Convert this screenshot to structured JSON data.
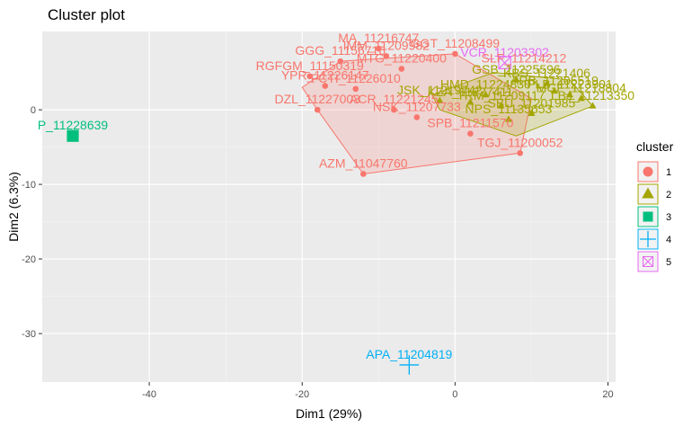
{
  "chart_data": {
    "type": "scatter",
    "title": "Cluster plot",
    "xlabel": "Dim1 (29%)",
    "ylabel": "Dim2 (6.3%)",
    "xlim": [
      -54,
      21
    ],
    "ylim": [
      -36.5,
      10.5
    ],
    "x_ticks": [
      -40,
      -20,
      0,
      20
    ],
    "y_ticks": [
      0,
      -10,
      -20,
      -30
    ],
    "grid": true,
    "legend": {
      "title": "cluster",
      "position": "right",
      "items": [
        {
          "label": "1",
          "color": "#F8766D",
          "shape": "circle"
        },
        {
          "label": "2",
          "color": "#A3A500",
          "shape": "triangle"
        },
        {
          "label": "3",
          "color": "#00BF7D",
          "shape": "square"
        },
        {
          "label": "4",
          "color": "#00B0F6",
          "shape": "plus"
        },
        {
          "label": "5",
          "color": "#E76BF3",
          "shape": "square-cross"
        }
      ]
    },
    "clusters": [
      {
        "name": "1",
        "color": "#F8766D",
        "hull": [
          [
            -12,
            -8.6
          ],
          [
            8.5,
            -5.8
          ],
          [
            10,
            1.5
          ],
          [
            0,
            7.5
          ],
          [
            -15,
            6.5
          ],
          [
            -20,
            3
          ],
          [
            -18,
            0
          ]
        ],
        "points": [
          {
            "label": "MA_11216747",
            "x": -10,
            "y": 8.2
          },
          {
            "label": "GGT_11208499",
            "x": 0,
            "y": 7.5
          },
          {
            "label": "IMM_11209982",
            "x": -9,
            "y": 7.2
          },
          {
            "label": "GGG_11156716",
            "x": -15,
            "y": 6.5
          },
          {
            "label": "MTG_11220400",
            "x": -7,
            "y": 5.5
          },
          {
            "label": "RGFGM_11150319",
            "x": -19,
            "y": 4.5
          },
          {
            "label": "YPR_11226147",
            "x": -17,
            "y": 3.2
          },
          {
            "label": "FCTI_11226010",
            "x": -13,
            "y": 2.8
          },
          {
            "label": "DZL_11227003",
            "x": -18,
            "y": 0
          },
          {
            "label": "ACR_11221245",
            "x": -8,
            "y": 0
          },
          {
            "label": "NSK_11207733",
            "x": -5,
            "y": -1
          },
          {
            "label": "SPB_11211570",
            "x": 2,
            "y": -3.2
          },
          {
            "label": "TGJ_11200052",
            "x": 8.5,
            "y": -5.8
          },
          {
            "label": "AZM_11047760",
            "x": -12,
            "y": -8.6
          }
        ]
      },
      {
        "name": "2",
        "color": "#A3A500",
        "hull": [
          [
            8,
            -3.5
          ],
          [
            18,
            0.5
          ],
          [
            15,
            4
          ],
          [
            5,
            5
          ],
          [
            -3,
            2
          ],
          [
            -2,
            0
          ]
        ],
        "points": [
          {
            "label": "GSB_11225596",
            "x": 8,
            "y": 4
          },
          {
            "label": "KBS_11221406",
            "x": 12,
            "y": 3.5
          },
          {
            "label": "PLB_11223901",
            "x": 15,
            "y": 2
          },
          {
            "label": "MGF_11218804",
            "x": 16.5,
            "y": 1.5
          },
          {
            "label": "LBJ_11213350",
            "x": 18,
            "y": 0.5
          },
          {
            "label": "TRM_11209117",
            "x": 6,
            "y": 0.5
          },
          {
            "label": "NPS_11135653",
            "x": 7,
            "y": -1.3
          },
          {
            "label": "KZA_11227411",
            "x": 2,
            "y": 1
          },
          {
            "label": "SBU_11201985",
            "x": 10,
            "y": -0.5
          },
          {
            "label": "HMD_11224830",
            "x": 4,
            "y": 2
          },
          {
            "label": "ARB_11205519",
            "x": 13,
            "y": 2.5
          },
          {
            "label": "JSK_11219742",
            "x": -2,
            "y": 1.2
          }
        ]
      },
      {
        "name": "3",
        "color": "#00BF7D",
        "hull": [],
        "points": [
          {
            "label": "P_11228639",
            "x": -50,
            "y": -3.5
          }
        ]
      },
      {
        "name": "4",
        "color": "#00B0F6",
        "hull": [],
        "points": [
          {
            "label": "APA_11204819",
            "x": -6,
            "y": -34.2
          }
        ]
      },
      {
        "name": "5",
        "color": "#E76BF3",
        "hull": [],
        "points": [
          {
            "label": "VCR_11203302",
            "x": 6.5,
            "y": 6.3
          }
        ]
      }
    ],
    "extra_labels": [
      {
        "label": "SLF_11214212",
        "x": 9,
        "y": 5.5,
        "cluster": "1"
      }
    ]
  }
}
